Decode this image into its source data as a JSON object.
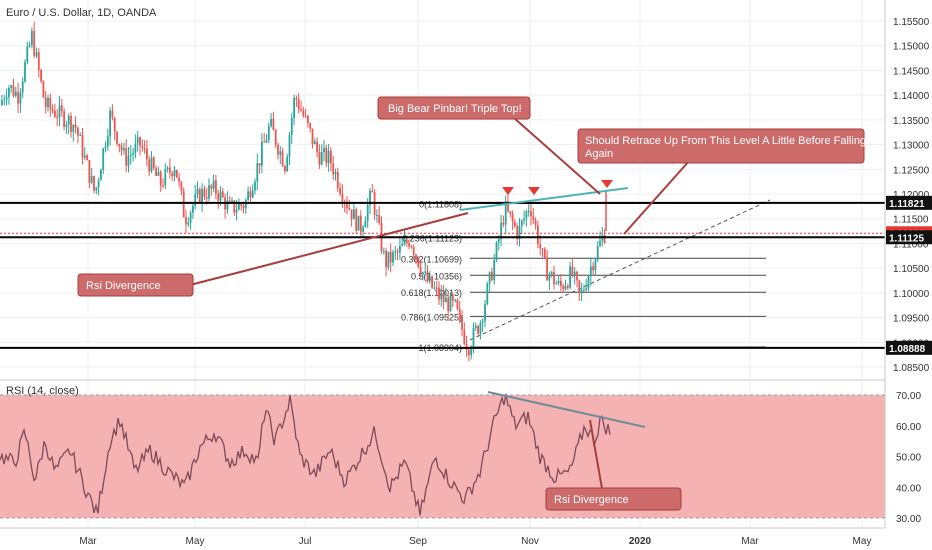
{
  "header": {
    "symbol_title": "Euro / U.S. Dollar, 1D, OANDA",
    "rsi_title": "RSI (14, close)"
  },
  "price_axis": {
    "ticks": [
      "1.15500",
      "1.15000",
      "1.14500",
      "1.14000",
      "1.13500",
      "1.13000",
      "1.12500",
      "1.12000",
      "1.11500",
      "1.11000",
      "1.10500",
      "1.10000",
      "1.09500",
      "1.09000",
      "1.08500"
    ],
    "tick_values": [
      1.155,
      1.15,
      1.145,
      1.14,
      1.135,
      1.13,
      1.125,
      1.12,
      1.115,
      1.11,
      1.105,
      1.1,
      1.095,
      1.09,
      1.085
    ],
    "badges": [
      {
        "text": "1.11821",
        "value": 1.11821,
        "style": "dark"
      },
      {
        "text": "1.11206",
        "value": 1.11206,
        "style": "red"
      },
      {
        "text": "1.11125",
        "value": 1.11125,
        "style": "dark"
      },
      {
        "text": "1.08888",
        "value": 1.08888,
        "style": "dark"
      }
    ]
  },
  "rsi_axis": {
    "ticks": [
      "70.00",
      "60.00",
      "50.00",
      "40.00",
      "30.00"
    ],
    "tick_values": [
      70,
      60,
      50,
      40,
      30
    ]
  },
  "time_axis": {
    "labels": [
      "Mar",
      "May",
      "Jul",
      "Sep",
      "Nov",
      "2020",
      "Mar",
      "May"
    ],
    "bold": "2020"
  },
  "fibonacci": [
    {
      "text": "0(1.11808)",
      "value": 1.11808
    },
    {
      "text": "0.236(1.11123)",
      "value": 1.11123
    },
    {
      "text": "0.382(1.10699)",
      "value": 1.10699
    },
    {
      "text": "0.5(1.10356)",
      "value": 1.10356
    },
    {
      "text": "0.618(1.10013)",
      "value": 1.10013
    },
    {
      "text": "0.786(1.09525)",
      "value": 1.09525
    },
    {
      "text": "1(1.08904)",
      "value": 1.08904
    }
  ],
  "horizontal_levels": [
    1.11821,
    1.11125,
    1.08888
  ],
  "annotations": {
    "pinbar": "Big Bear Pinbar! Triple Top!",
    "retrace": "Should Retrace Up From This Level A Little Before Falling Again",
    "rsi_divergence_price": "Rsi Divergence",
    "rsi_divergence_rsi": "Rsi Divergence"
  },
  "colors": {
    "up": "#26a69a",
    "down": "#ef5350",
    "rsi_band": "#f4b2b2",
    "rsi_line": "#7e57c2",
    "annotation_fill": "#cd6b6b",
    "annotation_border": "#a83d3d",
    "arrow": "#e53935",
    "trend_teal": "#4fb3b8"
  }
}
